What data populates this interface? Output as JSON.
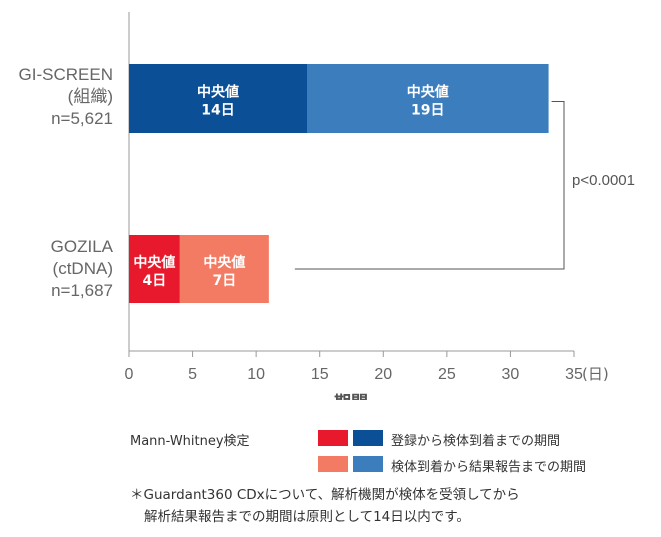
{
  "chart_data": {
    "type": "bar",
    "orientation": "horizontal",
    "stacked": true,
    "xlabel": "期間",
    "xunit": "(日)",
    "xlim": [
      0,
      35
    ],
    "xticks": [
      "0",
      "5",
      "10",
      "15",
      "20",
      "25",
      "30",
      "35"
    ],
    "grid": false,
    "categories": [
      {
        "lines": [
          "GI-SCREEN",
          "(組織)",
          "n=5,621"
        ]
      },
      {
        "lines": [
          "GOZILA",
          "(ctDNA)",
          "n=1,687"
        ]
      }
    ],
    "series": [
      {
        "name": "登録から検体到着までの期間",
        "values": [
          14,
          4
        ],
        "colors": [
          "#0b4f97",
          "#e8192c"
        ],
        "labels": [
          [
            "中央値",
            "14日"
          ],
          [
            "中央値",
            "4日"
          ]
        ]
      },
      {
        "name": "検体到着から結果報告までの期間",
        "values": [
          19,
          7
        ],
        "colors": [
          "#3b7dbd",
          "#f47b63"
        ],
        "labels": [
          [
            "中央値",
            "19日"
          ],
          [
            "中央値",
            "7日"
          ]
        ]
      }
    ],
    "annotation": "p<0.0001"
  },
  "legend": {
    "title": "Mann-Whitney検定",
    "items": [
      {
        "label": "登録から検体到着までの期間",
        "colors": [
          "#e8192c",
          "#0b4f97"
        ]
      },
      {
        "label": "検体到着から結果報告までの期間",
        "colors": [
          "#f47b63",
          "#3b7dbd"
        ]
      }
    ]
  },
  "footnote": {
    "line1": "＊Guardant360 CDxについて、解析機関が検体を受領してから",
    "line2": "解析結果報告までの期間は原則として14日以内です。"
  }
}
